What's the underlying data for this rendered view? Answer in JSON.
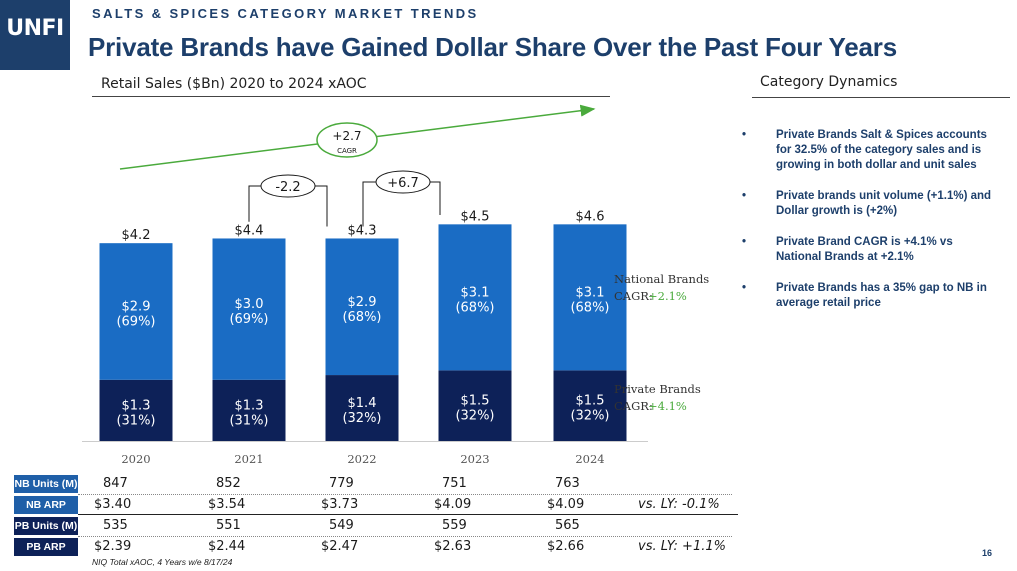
{
  "brand": {
    "logo_text": "UNFI"
  },
  "header": {
    "eyebrow": "SALTS & SPICES CATEGORY MARKET TRENDS",
    "title": "Private Brands have Gained Dollar Share Over the Past Four Years"
  },
  "chart_data": {
    "type": "bar",
    "stacked": true,
    "title": "Retail Sales ($Bn) 2020 to 2024 xAOC",
    "categories": [
      "2020",
      "2021",
      "2022",
      "2023",
      "2024"
    ],
    "totals": [
      4.2,
      4.4,
      4.3,
      4.5,
      4.6
    ],
    "total_labels": [
      "$4.2",
      "$4.4",
      "$4.3",
      "$4.5",
      "$4.6"
    ],
    "series": [
      {
        "name": "Private Brands",
        "values": [
          1.3,
          1.3,
          1.4,
          1.5,
          1.5
        ],
        "labels": [
          "$1.3",
          "$1.3",
          "$1.4",
          "$1.5",
          "$1.5"
        ],
        "shares": [
          "(31%)",
          "(31%)",
          "(32%)",
          "(32%)",
          "(32%)"
        ],
        "color": "#0d2158"
      },
      {
        "name": "National Brands",
        "values": [
          2.9,
          3.0,
          2.9,
          3.1,
          3.1
        ],
        "labels": [
          "$2.9",
          "$3.0",
          "$2.9",
          "$3.1",
          "$3.1"
        ],
        "shares": [
          "(69%)",
          "(69%)",
          "(68%)",
          "(68%)",
          "(68%)"
        ],
        "color": "#1a6cc4"
      }
    ],
    "series_labels": [
      {
        "name": "National Brands",
        "cagr_label": "CAGR:",
        "cagr_value": "+2.1%"
      },
      {
        "name": "Private Brands",
        "cagr_label": "CAGR:",
        "cagr_value": "+4.1%"
      }
    ],
    "annotations": {
      "overall_cagr": {
        "value": "+2.7",
        "label": "CAGR"
      },
      "change_2021_2022": "-2.2",
      "change_2022_2023": "+6.7"
    },
    "ylim": [
      0,
      5
    ],
    "accent_green": "#4aaa3c"
  },
  "table": {
    "rows": [
      {
        "label": "NB Units (M)",
        "values": [
          "847",
          "852",
          "779",
          "751",
          "763"
        ],
        "note": ""
      },
      {
        "label": "NB ARP",
        "values": [
          "$3.40",
          "$3.54",
          "$3.73",
          "$4.09",
          "$4.09"
        ],
        "note": "vs. LY:  -0.1%"
      },
      {
        "label": "PB Units (M)",
        "values": [
          "535",
          "551",
          "549",
          "559",
          "565"
        ],
        "note": ""
      },
      {
        "label": "PB ARP",
        "values": [
          "$2.39",
          "$2.44",
          "$2.47",
          "$2.63",
          "$2.66"
        ],
        "note": "vs. LY:  +1.1%"
      }
    ]
  },
  "side_panel": {
    "title": "Category Dynamics",
    "bullets": [
      "Private Brands Salt & Spices accounts for 32.5% of the category sales and is growing in both dollar and unit sales",
      "Private brands unit volume (+1.1%) and Dollar growth is (+2%)",
      "Private Brand CAGR is +4.1% vs National Brands at +2.1%",
      "Private Brands has a 35% gap to NB in average retail price"
    ]
  },
  "footer": {
    "source": "NIQ Total xAOC, 4 Years w/e 8/17/24",
    "page_number": "16"
  }
}
